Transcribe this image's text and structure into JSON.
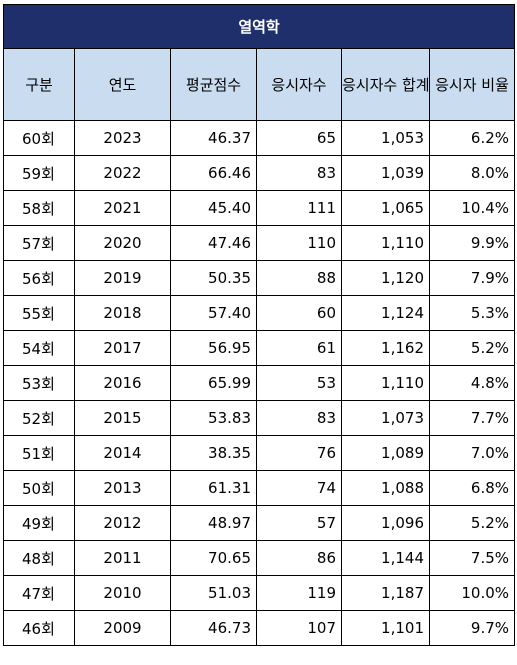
{
  "table": {
    "title": "열역학",
    "headers": [
      "구분",
      "연도",
      "평균점수",
      "응시자수",
      "응시자수 합계",
      "응시자 비율"
    ],
    "rows": [
      {
        "round": "60회",
        "year": "2023",
        "avg": "46.37",
        "takers": "65",
        "total": "1,053",
        "ratio": "6.2%"
      },
      {
        "round": "59회",
        "year": "2022",
        "avg": "66.46",
        "takers": "83",
        "total": "1,039",
        "ratio": "8.0%"
      },
      {
        "round": "58회",
        "year": "2021",
        "avg": "45.40",
        "takers": "111",
        "total": "1,065",
        "ratio": "10.4%"
      },
      {
        "round": "57회",
        "year": "2020",
        "avg": "47.46",
        "takers": "110",
        "total": "1,110",
        "ratio": "9.9%"
      },
      {
        "round": "56회",
        "year": "2019",
        "avg": "50.35",
        "takers": "88",
        "total": "1,120",
        "ratio": "7.9%"
      },
      {
        "round": "55회",
        "year": "2018",
        "avg": "57.40",
        "takers": "60",
        "total": "1,124",
        "ratio": "5.3%"
      },
      {
        "round": "54회",
        "year": "2017",
        "avg": "56.95",
        "takers": "61",
        "total": "1,162",
        "ratio": "5.2%"
      },
      {
        "round": "53회",
        "year": "2016",
        "avg": "65.99",
        "takers": "53",
        "total": "1,110",
        "ratio": "4.8%"
      },
      {
        "round": "52회",
        "year": "2015",
        "avg": "53.83",
        "takers": "83",
        "total": "1,073",
        "ratio": "7.7%"
      },
      {
        "round": "51회",
        "year": "2014",
        "avg": "38.35",
        "takers": "76",
        "total": "1,089",
        "ratio": "7.0%"
      },
      {
        "round": "50회",
        "year": "2013",
        "avg": "61.31",
        "takers": "74",
        "total": "1,088",
        "ratio": "6.8%"
      },
      {
        "round": "49회",
        "year": "2012",
        "avg": "48.97",
        "takers": "57",
        "total": "1,096",
        "ratio": "5.2%"
      },
      {
        "round": "48회",
        "year": "2011",
        "avg": "70.65",
        "takers": "86",
        "total": "1,144",
        "ratio": "7.5%"
      },
      {
        "round": "47회",
        "year": "2010",
        "avg": "51.03",
        "takers": "119",
        "total": "1,187",
        "ratio": "10.0%"
      },
      {
        "round": "46회",
        "year": "2009",
        "avg": "46.73",
        "takers": "107",
        "total": "1,101",
        "ratio": "9.7%"
      }
    ]
  },
  "colors": {
    "title_bg": "#1f2f6b",
    "header_bg": "#c9dcf0",
    "border": "#000000"
  }
}
